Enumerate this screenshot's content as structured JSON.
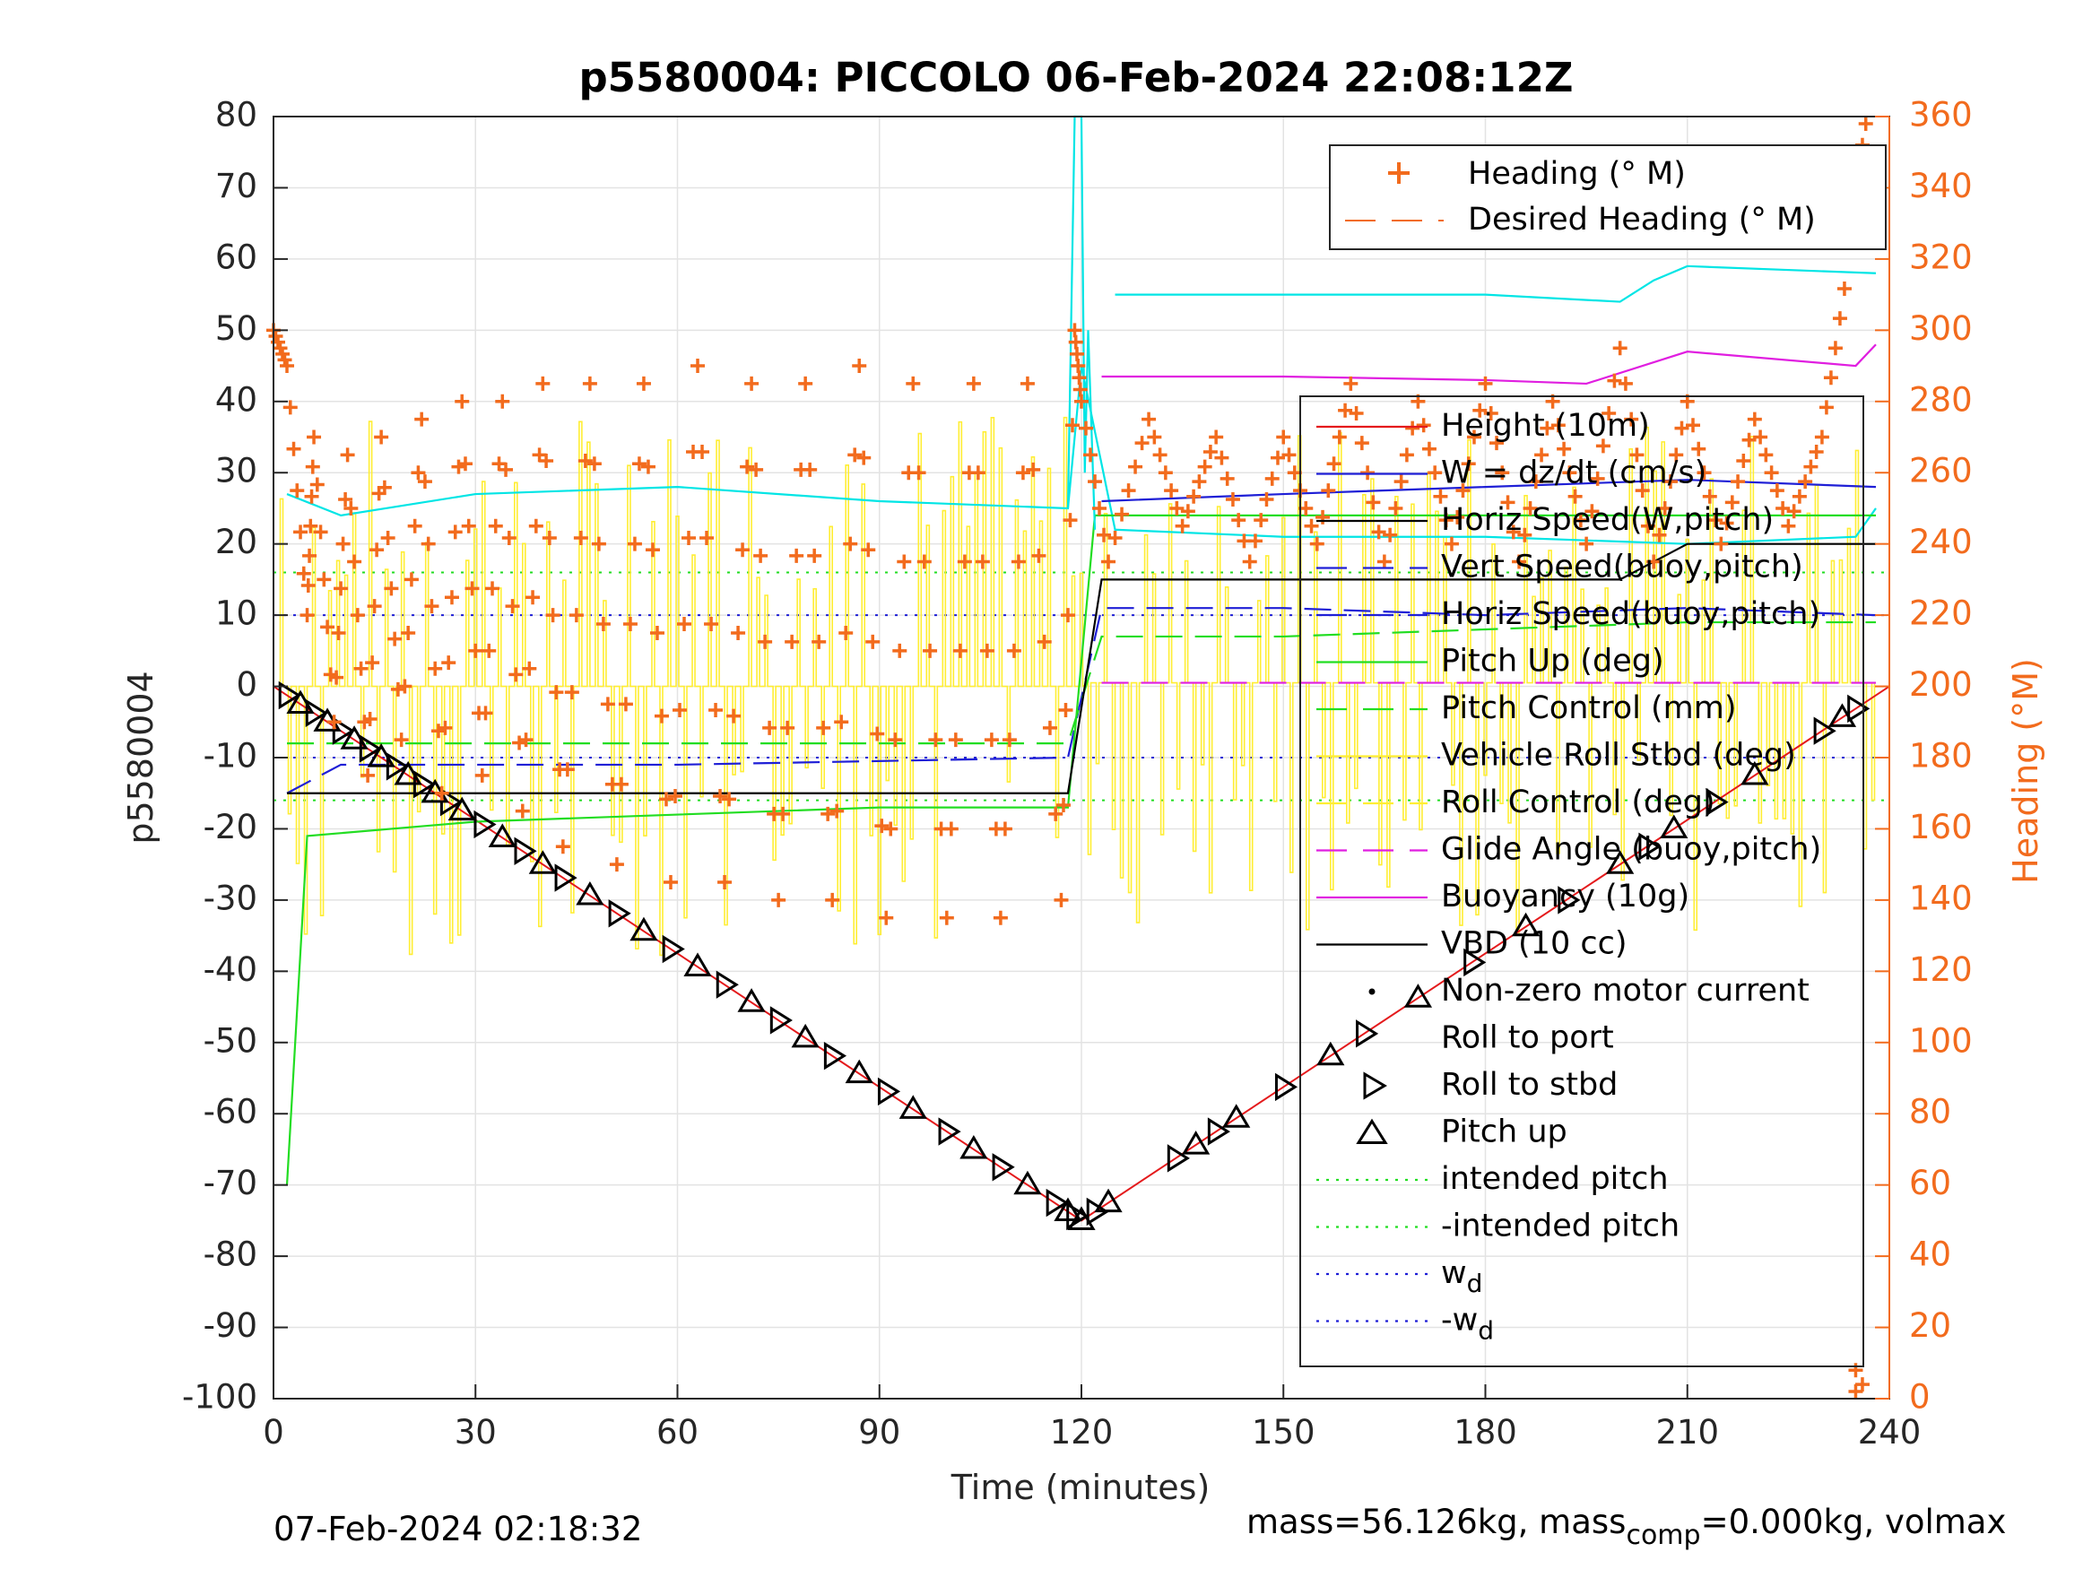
{
  "chart_data": {
    "type": "line",
    "title": "p5580004: PICCOLO 06-Feb-2024 22:08:12Z",
    "xlabel": "Time (minutes)",
    "ylabel_left": "p5580004",
    "ylabel_right": "Heading (°M)",
    "xlim": [
      0,
      240
    ],
    "ylim_left": [
      -100,
      80
    ],
    "ylim_right": [
      0,
      360
    ],
    "x_ticks": [
      "0",
      "30",
      "60",
      "90",
      "120",
      "150",
      "180",
      "210",
      "240"
    ],
    "y_ticks_left": [
      "80",
      "70",
      "60",
      "50",
      "40",
      "30",
      "20",
      "10",
      "0",
      "-10",
      "-20",
      "-30",
      "-40",
      "-50",
      "-60",
      "-70",
      "-80",
      "-90",
      "-100"
    ],
    "y_ticks_right": [
      "360",
      "340",
      "320",
      "300",
      "280",
      "260",
      "240",
      "220",
      "200",
      "180",
      "160",
      "140",
      "120",
      "100",
      "80",
      "60",
      "40",
      "20",
      "0"
    ],
    "grid": true,
    "legend_top": {
      "placement": "top-right",
      "entries": [
        "Heading (° M)",
        "Desired Heading (° M)"
      ]
    },
    "legend_main": {
      "placement": "right",
      "entries": [
        "Height (10m)",
        "W = dz/dt (cm/s)",
        "Horiz Speed(W,pitch)",
        "Vert Speed(buoy,pitch)",
        "Horiz Speed(buoy,pitch)",
        "Pitch Up (deg)",
        "Pitch Control (mm)",
        "Vehicle Roll Stbd (deg)",
        "Roll Control (deg)",
        "Glide Angle (buoy,pitch)",
        "Buoyancy (10g)",
        "VBD (10 cc)",
        "Non-zero motor current",
        "Roll to port",
        "Roll to stbd",
        "Pitch up",
        "intended pitch",
        "-intended pitch",
        "w",
        "-w"
      ],
      "w_subscript": "d"
    },
    "series": [
      {
        "name": "Height (10m)",
        "color": "#e41a1c",
        "x": [
          0,
          120,
          240
        ],
        "y": [
          0,
          -75,
          0
        ]
      },
      {
        "name": "Horiz Speed(W,pitch)",
        "color": "#00e5e5",
        "x": [
          2,
          10,
          30,
          60,
          90,
          118,
          120,
          125,
          150,
          180,
          210,
          235,
          238
        ],
        "y": [
          27,
          24,
          27,
          28,
          26,
          25,
          45,
          22,
          21,
          21,
          20,
          21,
          25
        ]
      },
      {
        "name": "Horiz Speed(buoy,pitch)",
        "color": "#00e5e5",
        "x": [
          125,
          150,
          180,
          200,
          205,
          210,
          238
        ],
        "y": [
          55,
          55,
          55,
          54,
          57,
          59,
          58
        ]
      },
      {
        "name": "Vert Speed(buoy,pitch)",
        "color": "#1f1fd6",
        "x": [
          2,
          10,
          60,
          118,
          123,
          150,
          180,
          210,
          238
        ],
        "y": [
          -15,
          -11,
          -11,
          -10,
          11,
          11,
          10,
          11,
          10
        ]
      },
      {
        "name": "W = dz/dt (cm/s)",
        "color": "#1f1fd6",
        "x": [
          123,
          150,
          180,
          210,
          238
        ],
        "y": [
          26,
          27,
          28,
          29,
          28
        ]
      },
      {
        "name": "Pitch Up (deg)",
        "color": "#22dd22",
        "x": [
          2,
          5,
          30,
          60,
          90,
          118,
          122,
          150,
          180,
          210,
          238
        ],
        "y": [
          -70,
          -21,
          -19,
          -18,
          -17,
          -17,
          24,
          24,
          24,
          24,
          24
        ]
      },
      {
        "name": "Pitch Control (mm)",
        "color": "#22dd22",
        "x": [
          2,
          60,
          118,
          123,
          150,
          180,
          210,
          238
        ],
        "y": [
          -8,
          -8,
          -8,
          7,
          7,
          8,
          9,
          9
        ]
      },
      {
        "name": "Buoyancy (10g)",
        "color": "#e01ee0",
        "x": [
          123,
          150,
          180,
          195,
          210,
          235,
          238
        ],
        "y": [
          43.5,
          43.5,
          43,
          42.5,
          47,
          45,
          48
        ]
      },
      {
        "name": "Glide Angle (buoy,pitch)",
        "color": "#e01ee0",
        "x": [
          123,
          238
        ],
        "y": [
          0.5,
          0.5
        ]
      },
      {
        "name": "VBD (10 cc)",
        "color": "#000000",
        "x": [
          2,
          118,
          123,
          200,
          210,
          238
        ],
        "y": [
          -15,
          -15,
          15,
          15,
          20,
          20
        ]
      }
    ],
    "heading_points_deg": [
      [
        0,
        300
      ],
      [
        2,
        290
      ],
      [
        5,
        220
      ],
      [
        6,
        270
      ],
      [
        9,
        190
      ],
      [
        11,
        265
      ],
      [
        14,
        175
      ],
      [
        16,
        270
      ],
      [
        19,
        185
      ],
      [
        22,
        275
      ],
      [
        25,
        170
      ],
      [
        28,
        280
      ],
      [
        31,
        175
      ],
      [
        34,
        280
      ],
      [
        37,
        165
      ],
      [
        40,
        285
      ],
      [
        43,
        155
      ],
      [
        47,
        285
      ],
      [
        51,
        150
      ],
      [
        55,
        285
      ],
      [
        59,
        145
      ],
      [
        63,
        290
      ],
      [
        67,
        145
      ],
      [
        71,
        285
      ],
      [
        75,
        140
      ],
      [
        79,
        285
      ],
      [
        83,
        140
      ],
      [
        87,
        290
      ],
      [
        91,
        135
      ],
      [
        95,
        285
      ],
      [
        100,
        135
      ],
      [
        104,
        285
      ],
      [
        108,
        135
      ],
      [
        112,
        285
      ],
      [
        117,
        140
      ],
      [
        119,
        300
      ],
      [
        120,
        280
      ],
      [
        124,
        235
      ],
      [
        130,
        275
      ],
      [
        135,
        245
      ],
      [
        140,
        270
      ],
      [
        145,
        235
      ],
      [
        150,
        270
      ],
      [
        155,
        240
      ],
      [
        160,
        285
      ],
      [
        165,
        235
      ],
      [
        170,
        280
      ],
      [
        175,
        240
      ],
      [
        180,
        285
      ],
      [
        185,
        235
      ],
      [
        190,
        280
      ],
      [
        195,
        240
      ],
      [
        200,
        295
      ],
      [
        205,
        235
      ],
      [
        210,
        280
      ],
      [
        215,
        240
      ],
      [
        220,
        275
      ],
      [
        225,
        245
      ],
      [
        230,
        270
      ],
      [
        234,
        320
      ],
      [
        235,
        0
      ],
      [
        236,
        355
      ]
    ],
    "intended_pitch": 16,
    "wd": 10,
    "turn_markers_minutes": [
      2,
      4,
      6,
      8,
      10,
      12,
      14,
      16,
      18,
      20,
      22,
      24,
      26,
      28,
      31,
      34,
      37,
      40,
      43,
      47,
      51,
      55,
      59,
      63,
      67,
      71,
      75,
      79,
      83,
      87,
      91,
      95,
      100,
      104,
      108,
      112,
      116,
      118,
      119,
      120,
      122,
      124,
      134,
      137,
      140,
      143,
      150,
      157,
      162,
      170,
      178,
      186,
      192,
      200,
      204,
      208,
      214,
      220,
      230,
      233,
      235
    ]
  },
  "footer": {
    "timestamp": "07-Feb-2024 02:18:32",
    "mass_prefix": "mass=56.126kg, mass",
    "mass_sub": "comp",
    "mass_suffix": "=0.000kg, volmax"
  }
}
